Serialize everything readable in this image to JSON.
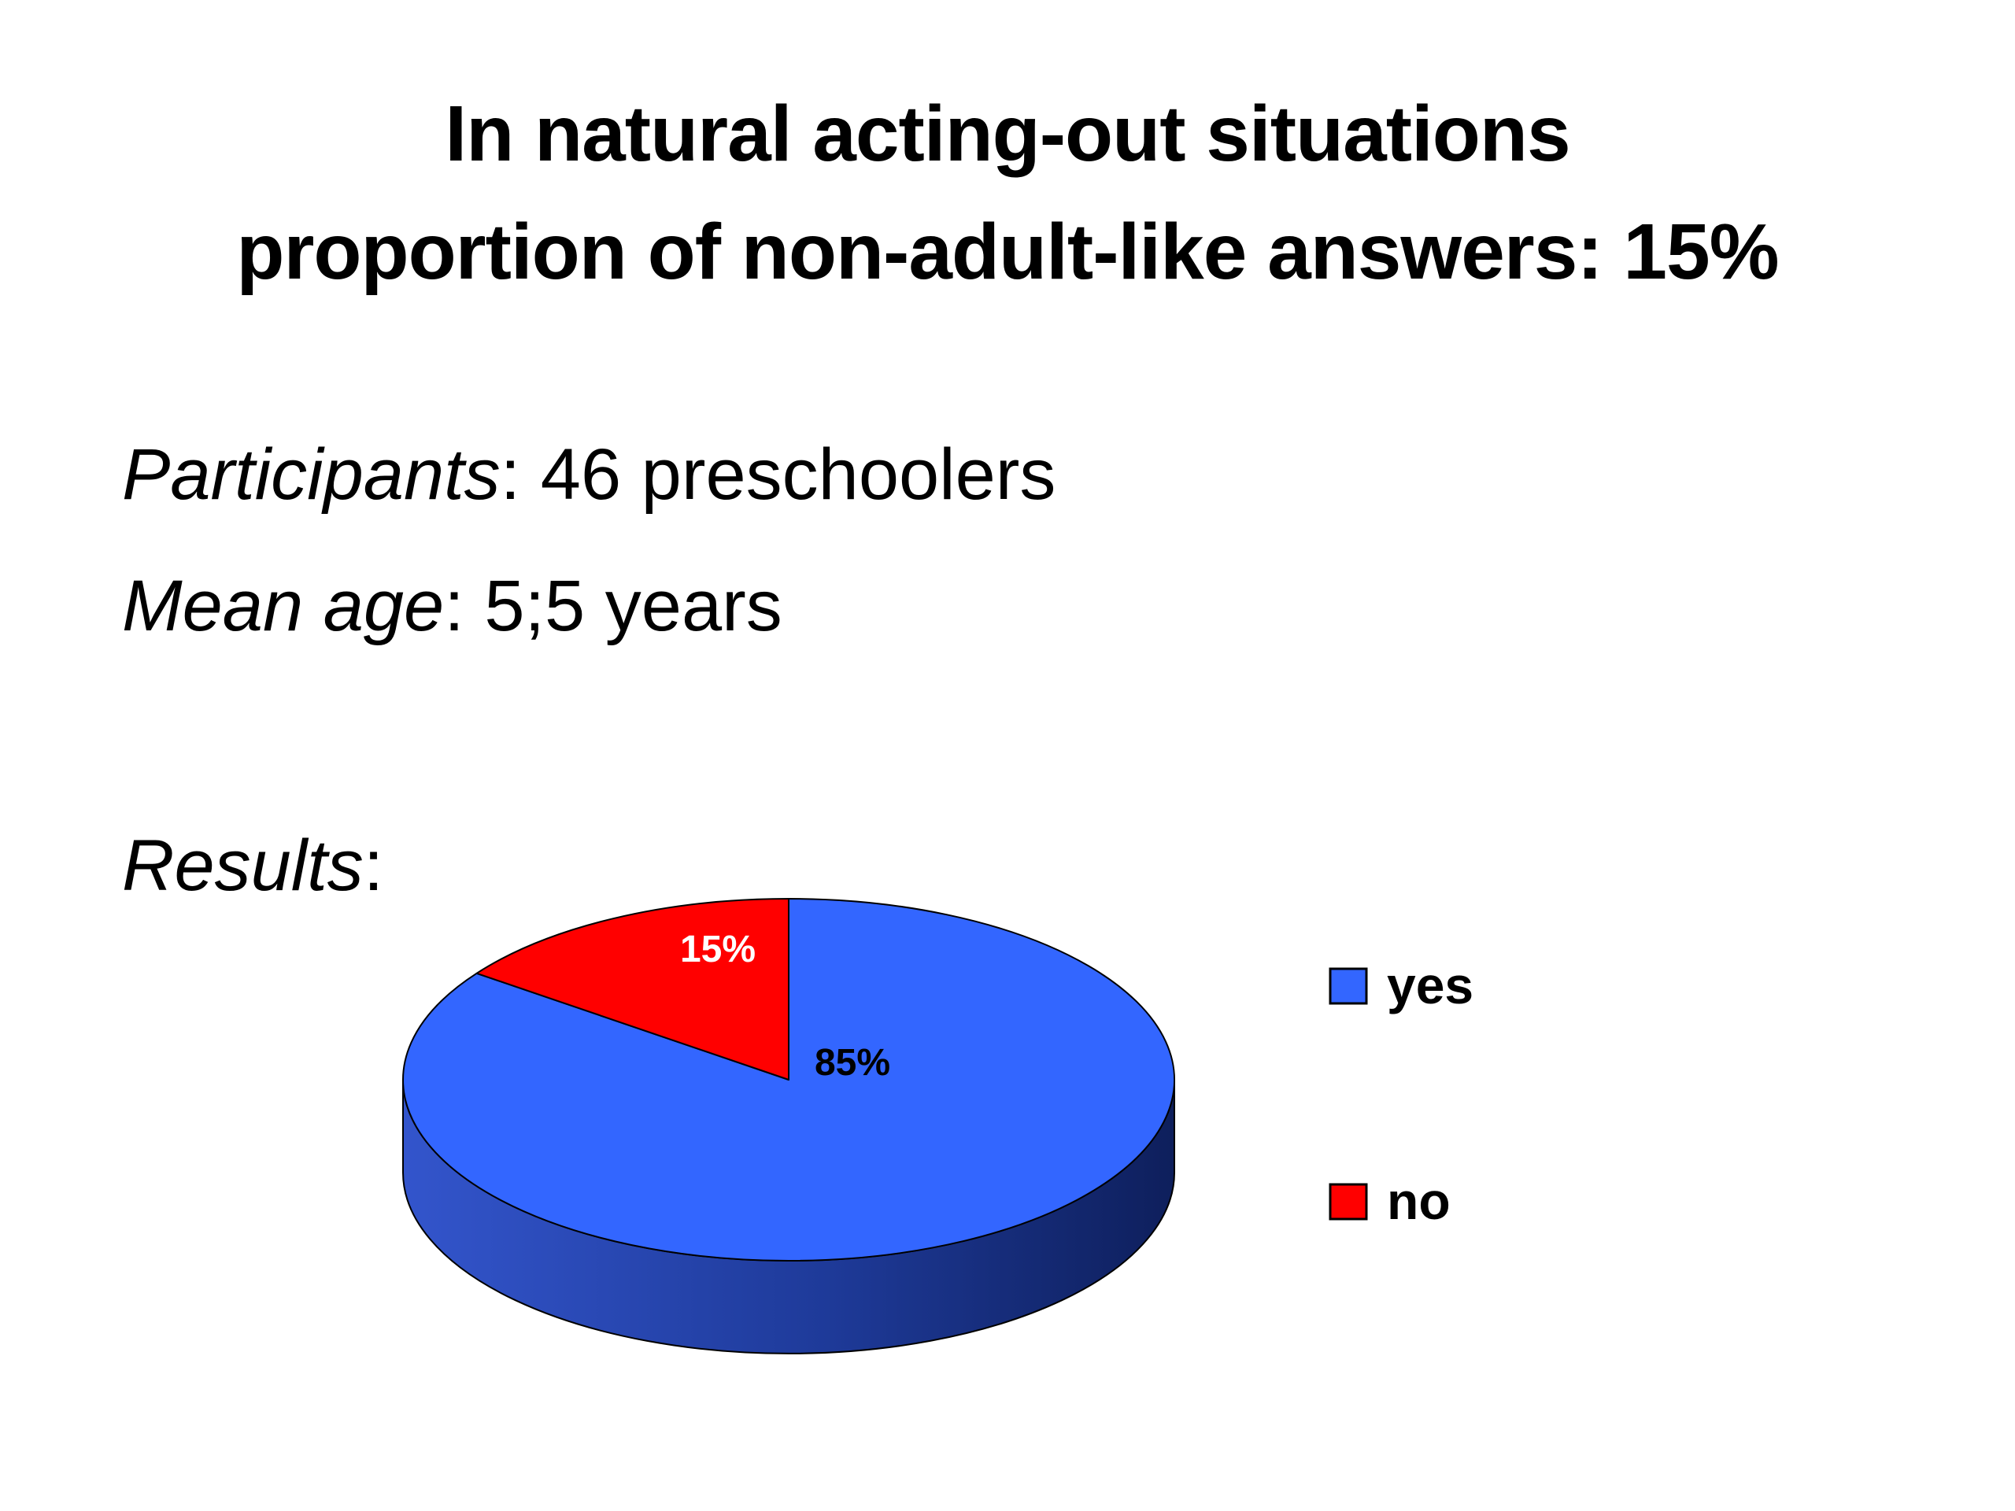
{
  "slide": {
    "title_line1": "In natural acting-out situations",
    "title_line2": "proportion of non-adult-like answers: 15%",
    "participants_label": "Participants",
    "participants_value": ": 46 preschoolers",
    "age_label": "Mean age",
    "age_value": ": 5;5 years",
    "results_label": "Results",
    "results_suffix": ":"
  },
  "chart_data": {
    "type": "pie",
    "style": "3d",
    "categories": [
      "yes",
      "no"
    ],
    "values": [
      85,
      15
    ],
    "data_labels": [
      "85%",
      "15%"
    ],
    "colors": [
      "#3366FF",
      "#FF0000"
    ],
    "legend_position": "right",
    "title": ""
  }
}
